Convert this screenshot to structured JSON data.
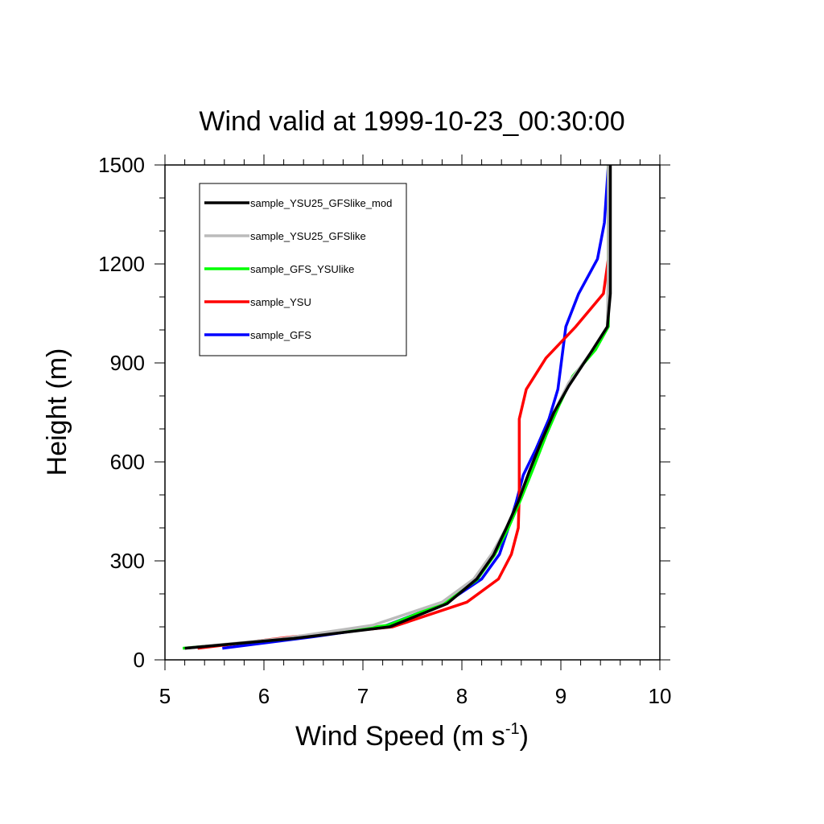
{
  "chart_data": {
    "type": "line",
    "title": "Wind valid at 1999-10-23_00:30:00",
    "xlabel_main": "Wind Speed (m s",
    "xlabel_sup": "-1",
    "xlabel_close": ")",
    "ylabel": "Height (m)",
    "xlim": [
      5,
      10
    ],
    "ylim": [
      0,
      1500
    ],
    "xticks": [
      5,
      6,
      7,
      8,
      9,
      10
    ],
    "yticks": [
      0,
      300,
      600,
      900,
      1200,
      1500
    ],
    "legend_position": "top-left",
    "series": [
      {
        "name": "sample_GFS",
        "color": "#0000ff",
        "points": [
          [
            5.58,
            35
          ],
          [
            6.5,
            70
          ],
          [
            7.2,
            100
          ],
          [
            7.85,
            175
          ],
          [
            8.2,
            245
          ],
          [
            8.38,
            320
          ],
          [
            8.47,
            400
          ],
          [
            8.55,
            480
          ],
          [
            8.62,
            560
          ],
          [
            8.75,
            640
          ],
          [
            8.88,
            730
          ],
          [
            8.97,
            820
          ],
          [
            9.05,
            1010
          ],
          [
            9.18,
            1110
          ],
          [
            9.37,
            1215
          ],
          [
            9.44,
            1325
          ],
          [
            9.48,
            1500
          ]
        ]
      },
      {
        "name": "sample_YSU",
        "color": "#ff0000",
        "points": [
          [
            5.33,
            35
          ],
          [
            6.3,
            70
          ],
          [
            7.3,
            100
          ],
          [
            8.05,
            175
          ],
          [
            8.37,
            245
          ],
          [
            8.5,
            320
          ],
          [
            8.57,
            400
          ],
          [
            8.58,
            500
          ],
          [
            8.58,
            640
          ],
          [
            8.58,
            730
          ],
          [
            8.65,
            820
          ],
          [
            8.85,
            915
          ],
          [
            9.15,
            1010
          ],
          [
            9.43,
            1110
          ],
          [
            9.48,
            1215
          ],
          [
            9.48,
            1325
          ],
          [
            9.48,
            1500
          ]
        ]
      },
      {
        "name": "sample_GFS_YSUlike",
        "color": "#00ff00",
        "points": [
          [
            5.18,
            35
          ],
          [
            6.3,
            65
          ],
          [
            7.25,
            105
          ],
          [
            7.82,
            172
          ],
          [
            8.15,
            242
          ],
          [
            8.33,
            318
          ],
          [
            8.47,
            400
          ],
          [
            8.6,
            490
          ],
          [
            8.72,
            580
          ],
          [
            8.85,
            680
          ],
          [
            8.98,
            770
          ],
          [
            9.12,
            860
          ],
          [
            9.35,
            940
          ],
          [
            9.48,
            1010
          ],
          [
            9.48,
            1215
          ],
          [
            9.48,
            1500
          ]
        ]
      },
      {
        "name": "sample_YSU25_GFSlike",
        "color": "#bbbbbb",
        "points": [
          [
            5.2,
            35
          ],
          [
            6.2,
            65
          ],
          [
            7.1,
            105
          ],
          [
            7.8,
            175
          ],
          [
            8.12,
            245
          ],
          [
            8.3,
            320
          ],
          [
            8.45,
            400
          ],
          [
            8.57,
            480
          ],
          [
            8.68,
            570
          ],
          [
            8.8,
            660
          ],
          [
            8.93,
            750
          ],
          [
            9.08,
            840
          ],
          [
            9.3,
            930
          ],
          [
            9.47,
            1010
          ],
          [
            9.48,
            1215
          ],
          [
            9.48,
            1500
          ]
        ]
      },
      {
        "name": "sample_YSU25_GFSlike_mod",
        "color": "#000000",
        "points": [
          [
            5.2,
            35
          ],
          [
            6.3,
            65
          ],
          [
            7.27,
            100
          ],
          [
            7.85,
            170
          ],
          [
            8.15,
            245
          ],
          [
            8.32,
            318
          ],
          [
            8.45,
            400
          ],
          [
            8.57,
            480
          ],
          [
            8.68,
            570
          ],
          [
            8.8,
            660
          ],
          [
            8.93,
            750
          ],
          [
            9.08,
            830
          ],
          [
            9.3,
            930
          ],
          [
            9.47,
            1010
          ],
          [
            9.5,
            1110
          ],
          [
            9.5,
            1215
          ],
          [
            9.5,
            1500
          ]
        ]
      }
    ]
  }
}
